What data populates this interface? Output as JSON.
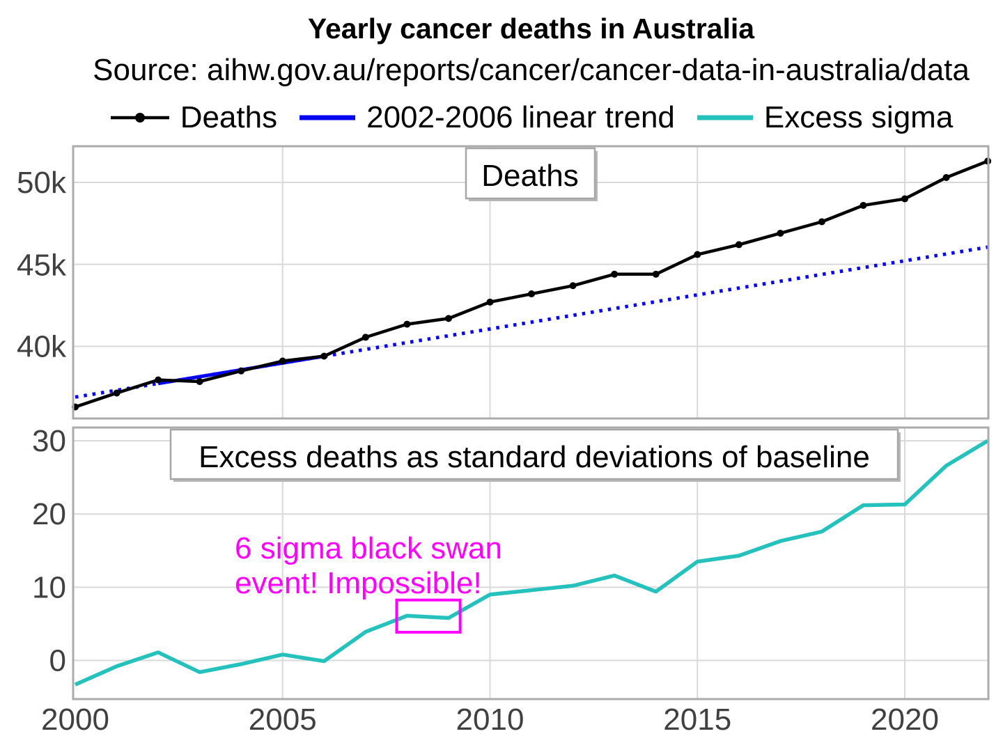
{
  "header": {
    "title": "Yearly cancer deaths in Australia",
    "source": "Source: aihw.gov.au/reports/cancer/cancer-data-in-australia/data",
    "legend": [
      {
        "label": "Deaths",
        "color": "#000000",
        "style": "line-with-dot"
      },
      {
        "label": "2002-2006 linear trend",
        "color": "#0505f0",
        "style": "line"
      },
      {
        "label": "Excess sigma",
        "color": "#24c1bd",
        "style": "line"
      }
    ]
  },
  "top_chart": {
    "inset_label": "Deaths",
    "yticks": [
      "50k",
      "45k",
      "40k"
    ]
  },
  "bottom_chart": {
    "inset_label": "Excess deaths as standard deviations of baseline",
    "yticks": [
      "30",
      "20",
      "10",
      "0"
    ],
    "xticks": [
      "2000",
      "2005",
      "2010",
      "2015",
      "2020"
    ],
    "annotation": {
      "line1": "6 sigma black swan",
      "line2": "event! Impossible!",
      "color": "#ff00ff"
    }
  },
  "chart_data": [
    {
      "type": "line",
      "title": "Deaths",
      "x": [
        2000,
        2001,
        2002,
        2003,
        2004,
        2005,
        2006,
        2007,
        2008,
        2009,
        2010,
        2011,
        2012,
        2013,
        2014,
        2015,
        2016,
        2017,
        2018,
        2019,
        2020,
        2021,
        2022
      ],
      "series": [
        {
          "name": "Deaths",
          "color": "#000000",
          "marker": "circle",
          "values": [
            36300,
            37150,
            37950,
            37850,
            38500,
            39100,
            39400,
            40550,
            41350,
            41700,
            42700,
            43200,
            43700,
            44400,
            44400,
            45600,
            46200,
            46900,
            47600,
            48600,
            49000,
            50300,
            51300
          ]
        },
        {
          "name": "2002-2006 linear trend",
          "color": "#0505f0",
          "style": "dotted-outside-fit-solid-inside",
          "fit_range": [
            2002,
            2006
          ],
          "trend_endpoints": {
            "x": [
              2000,
              2022
            ],
            "y": [
              36900,
              46050
            ]
          }
        }
      ],
      "ylabel": "",
      "ygrid_values": [
        40000,
        45000,
        50000
      ],
      "xgrid": [
        2005,
        2010,
        2015,
        2020
      ],
      "ylim": [
        35600,
        52200
      ],
      "xlim": [
        2000,
        2022
      ]
    },
    {
      "type": "line",
      "title": "Excess deaths as standard deviations of baseline",
      "x": [
        2000,
        2001,
        2002,
        2003,
        2004,
        2005,
        2006,
        2007,
        2008,
        2009,
        2010,
        2011,
        2012,
        2013,
        2014,
        2015,
        2016,
        2017,
        2018,
        2019,
        2020,
        2021,
        2022
      ],
      "series": [
        {
          "name": "Excess sigma",
          "color": "#24c1bd",
          "values": [
            -3.3,
            -0.8,
            1.1,
            -1.6,
            -0.5,
            0.8,
            -0.1,
            3.9,
            6.1,
            5.8,
            9.0,
            9.6,
            10.2,
            11.6,
            9.4,
            13.5,
            14.3,
            16.3,
            17.6,
            21.2,
            21.3,
            26.6,
            30.0
          ]
        }
      ],
      "ygrid_values": [
        0,
        10,
        20,
        30
      ],
      "xgrid": [
        2005,
        2010,
        2015,
        2020
      ],
      "ylim": [
        -5.3,
        31.8
      ],
      "xlim": [
        2000,
        2022
      ],
      "annotation_box": {
        "x": [
          2007.75,
          2009.28
        ],
        "y": [
          3.85,
          8.25
        ],
        "color": "#ff00ff"
      }
    }
  ]
}
